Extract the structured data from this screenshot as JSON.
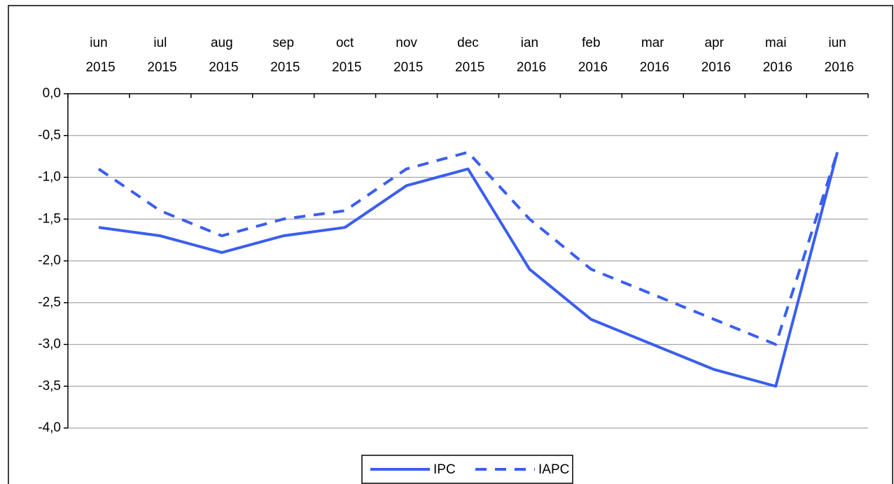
{
  "chart_data": {
    "type": "line",
    "categories": [
      "iun 2015",
      "iul 2015",
      "aug 2015",
      "sep 2015",
      "oct 2015",
      "nov 2015",
      "dec 2015",
      "ian 2016",
      "feb 2016",
      "mar 2016",
      "apr 2016",
      "mai 2016",
      "iun 2016"
    ],
    "series": [
      {
        "name": "IPC",
        "color": "#3a5ef0",
        "style": "solid",
        "values": [
          -1.6,
          -1.7,
          -1.9,
          -1.7,
          -1.6,
          -1.1,
          -0.9,
          -2.1,
          -2.7,
          -3.0,
          -3.3,
          -3.5,
          -0.7
        ]
      },
      {
        "name": "IAPC",
        "color": "#3a5ef0",
        "style": "dashed",
        "values": [
          -0.9,
          -1.4,
          -1.7,
          -1.5,
          -1.4,
          -0.9,
          -0.7,
          -1.5,
          -2.1,
          -2.4,
          -2.7,
          -3.0,
          -0.7
        ]
      }
    ],
    "ylim": [
      -4,
      0
    ],
    "yticks": [
      {
        "value": 0,
        "label": "0,0"
      },
      {
        "value": -0.5,
        "label": "-0,5"
      },
      {
        "value": -1,
        "label": "-1,0"
      },
      {
        "value": -1.5,
        "label": "-1,5"
      },
      {
        "value": -2,
        "label": "-2,0"
      },
      {
        "value": -2.5,
        "label": "-2,5"
      },
      {
        "value": -3,
        "label": "-3,0"
      },
      {
        "value": -3.5,
        "label": "-3,5"
      },
      {
        "value": -4,
        "label": "-4,0"
      }
    ],
    "grid": true,
    "legend": "bottom",
    "x_axis_position": "top"
  }
}
